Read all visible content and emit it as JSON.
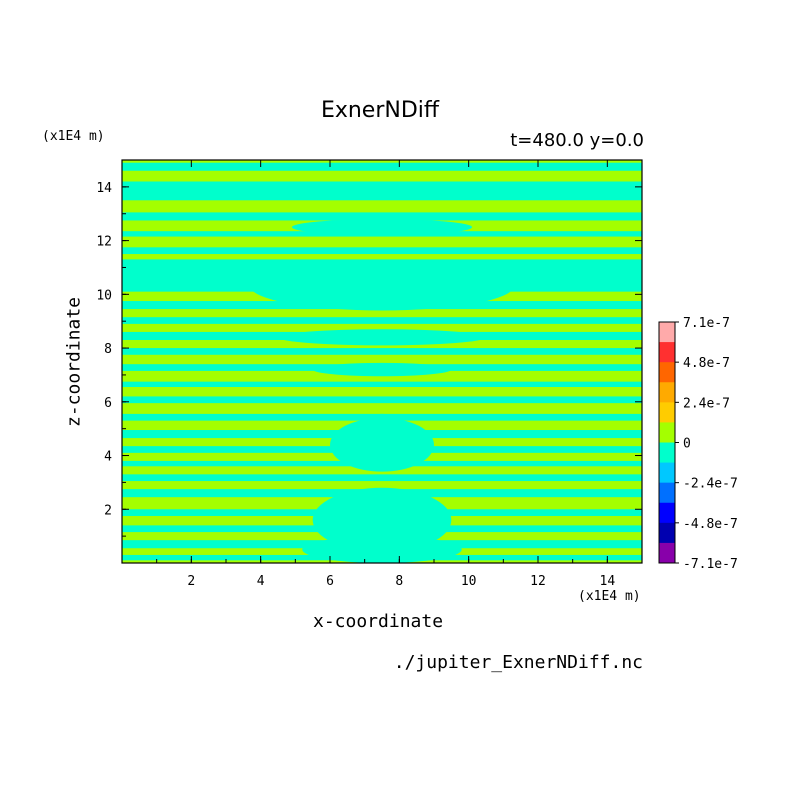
{
  "chart_data": {
    "type": "heatmap",
    "title": "ExnerNDiff",
    "subtitle": "t=480.0 y=0.0",
    "xlabel": "x-coordinate",
    "ylabel": "z-coordinate",
    "x_unit": "(x1E4 m)",
    "z_unit": "(x1E4 m)",
    "source": "./jupiter_ExnerNDiff.nc",
    "xlim": [
      0,
      15
    ],
    "ylim": [
      0,
      15
    ],
    "x_ticks": [
      2,
      4,
      6,
      8,
      10,
      12,
      14
    ],
    "y_ticks": [
      2,
      4,
      6,
      8,
      10,
      12,
      14
    ],
    "colorbar": {
      "labels": [
        "7.1e-7",
        "4.8e-7",
        "2.4e-7",
        "0",
        "-2.4e-7",
        "-4.8e-7",
        "-7.1e-7"
      ],
      "colors": [
        "#ffaaaa",
        "#ff3030",
        "#ff6600",
        "#ffaa00",
        "#ffcc00",
        "#a4ff00",
        "#00ffcc",
        "#00c8ff",
        "#0070ff",
        "#0000ff",
        "#0000b0",
        "#8800aa"
      ]
    },
    "field_colors": {
      "background": "#a4ff00",
      "negative": "#00ffcc"
    },
    "bands": [
      {
        "z0": 0.1,
        "z1": 0.3,
        "x0": 0,
        "x1": 15
      },
      {
        "z0": 0.55,
        "z1": 0.85,
        "x0": 0,
        "x1": 15
      },
      {
        "z0": 1.15,
        "z1": 1.4,
        "x0": 0,
        "x1": 15
      },
      {
        "z0": 1.75,
        "z1": 2.0,
        "x0": 0,
        "x1": 15
      },
      {
        "z0": 2.45,
        "z1": 2.75,
        "x0": 0,
        "x1": 15
      },
      {
        "z0": 3.05,
        "z1": 3.3,
        "x0": 0,
        "x1": 15
      },
      {
        "z0": 3.6,
        "z1": 3.8,
        "x0": 0,
        "x1": 15
      },
      {
        "z0": 4.1,
        "z1": 4.35,
        "x0": 0,
        "x1": 15
      },
      {
        "z0": 4.65,
        "z1": 4.95,
        "x0": 0,
        "x1": 15
      },
      {
        "z0": 5.3,
        "z1": 5.55,
        "x0": 0,
        "x1": 15
      },
      {
        "z0": 5.95,
        "z1": 6.2,
        "x0": 0,
        "x1": 15
      },
      {
        "z0": 6.55,
        "z1": 6.75,
        "x0": 0,
        "x1": 15
      },
      {
        "z0": 7.15,
        "z1": 7.4,
        "x0": 0,
        "x1": 15
      },
      {
        "z0": 7.75,
        "z1": 8.0,
        "x0": 0,
        "x1": 15
      },
      {
        "z0": 8.3,
        "z1": 8.6,
        "x0": 0,
        "x1": 15
      },
      {
        "z0": 8.9,
        "z1": 9.15,
        "x0": 0,
        "x1": 15
      },
      {
        "z0": 9.45,
        "z1": 9.75,
        "x0": 0,
        "x1": 15
      },
      {
        "z0": 10.1,
        "z1": 11.3,
        "x0": 0,
        "x1": 15
      },
      {
        "z0": 11.5,
        "z1": 11.75,
        "x0": 0,
        "x1": 15
      },
      {
        "z0": 12.15,
        "z1": 12.35,
        "x0": 0,
        "x1": 15
      },
      {
        "z0": 12.75,
        "z1": 13.05,
        "x0": 0,
        "x1": 15
      },
      {
        "z0": 13.5,
        "z1": 14.2,
        "x0": 0,
        "x1": 15
      },
      {
        "z0": 14.6,
        "z1": 14.9,
        "x0": 0,
        "x1": 15
      }
    ],
    "blobs": [
      {
        "cx": 7.5,
        "cz": 10.3,
        "rx": 3.8,
        "rz": 0.9
      },
      {
        "cx": 7.5,
        "cz": 12.5,
        "rx": 2.6,
        "rz": 0.3
      },
      {
        "cx": 7.5,
        "cz": 1.6,
        "rx": 2.0,
        "rz": 1.2
      },
      {
        "cx": 7.5,
        "cz": 0.5,
        "rx": 2.3,
        "rz": 0.5
      },
      {
        "cx": 7.5,
        "cz": 4.4,
        "rx": 1.5,
        "rz": 1.0
      },
      {
        "cx": 7.5,
        "cz": 5.4,
        "rx": 0.5,
        "rz": 0.15
      },
      {
        "cx": 7.5,
        "cz": 8.4,
        "rx": 3.0,
        "rz": 0.3
      },
      {
        "cx": 7.5,
        "cz": 7.2,
        "rx": 2.0,
        "rz": 0.25
      }
    ]
  }
}
